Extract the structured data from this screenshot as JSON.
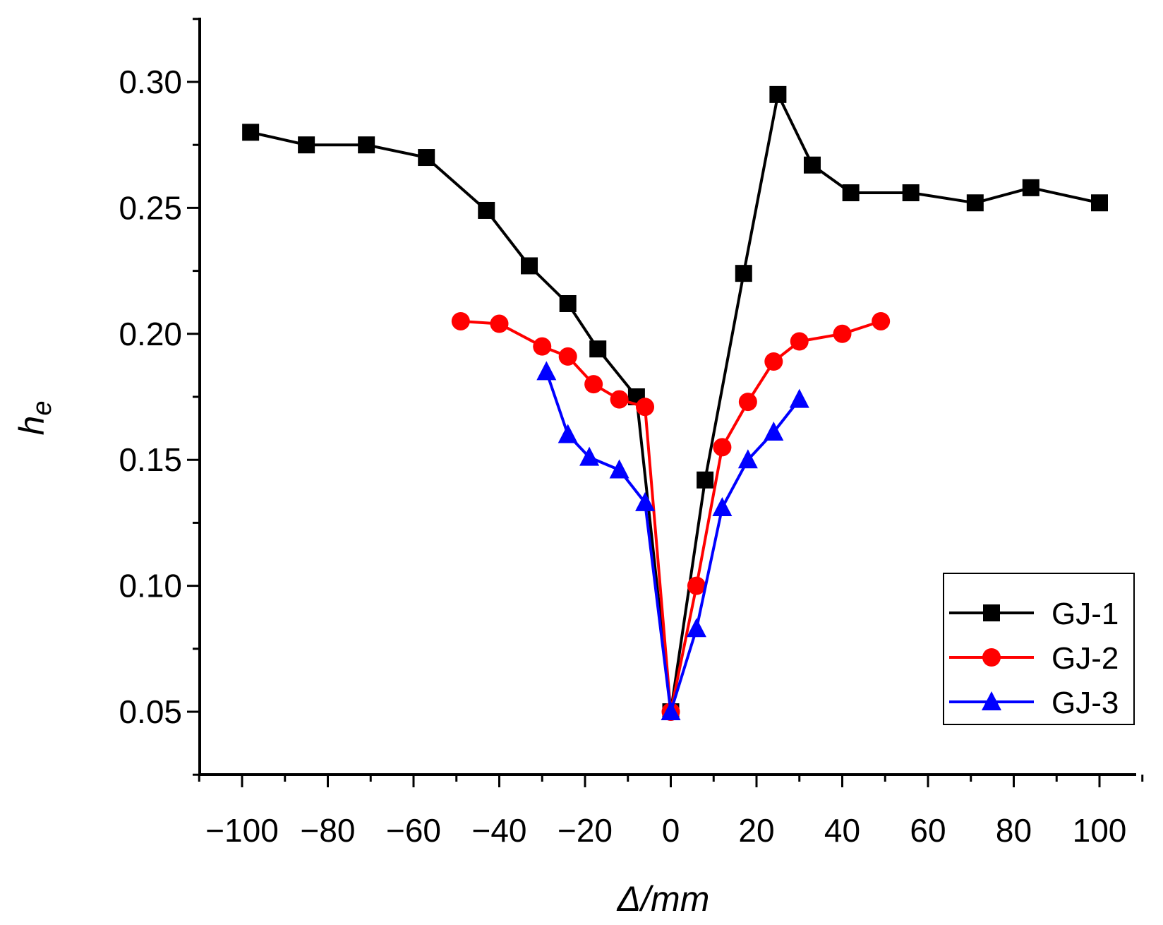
{
  "chart_data": {
    "type": "line",
    "title": "",
    "xlabel": "Δ/mm",
    "ylabel_main": "h",
    "ylabel_sub": "e",
    "xlim": [
      -110,
      110
    ],
    "ylim": [
      0.025,
      0.325
    ],
    "x_ticks": [
      -100,
      -80,
      -60,
      -40,
      -20,
      0,
      20,
      40,
      60,
      80,
      100
    ],
    "x_tick_labels": [
      "−100",
      "−80",
      "−60",
      "−40",
      "−20",
      "0",
      "20",
      "40",
      "60",
      "80",
      "100"
    ],
    "y_ticks": [
      0.05,
      0.1,
      0.15,
      0.2,
      0.25,
      0.3
    ],
    "y_tick_labels": [
      "0.05",
      "0.10",
      "0.15",
      "0.20",
      "0.25",
      "0.30"
    ],
    "legend_position": "bottom-right",
    "series": [
      {
        "name": "GJ-1",
        "color": "#000000",
        "marker": "square",
        "points": [
          [
            -98,
            0.28
          ],
          [
            -85,
            0.275
          ],
          [
            -71,
            0.275
          ],
          [
            -57,
            0.27
          ],
          [
            -43,
            0.249
          ],
          [
            -33,
            0.227
          ],
          [
            -24,
            0.212
          ],
          [
            -17,
            0.194
          ],
          [
            -8,
            0.175
          ],
          [
            0,
            0.05
          ],
          [
            8,
            0.142
          ],
          [
            17,
            0.224
          ],
          [
            25,
            0.295
          ],
          [
            33,
            0.267
          ],
          [
            42,
            0.256
          ],
          [
            56,
            0.256
          ],
          [
            71,
            0.252
          ],
          [
            84,
            0.258
          ],
          [
            100,
            0.252
          ]
        ]
      },
      {
        "name": "GJ-2",
        "color": "#ff0000",
        "marker": "circle",
        "points": [
          [
            -49,
            0.205
          ],
          [
            -40,
            0.204
          ],
          [
            -30,
            0.195
          ],
          [
            -24,
            0.191
          ],
          [
            -18,
            0.18
          ],
          [
            -12,
            0.174
          ],
          [
            -6,
            0.171
          ],
          [
            0,
            0.05
          ],
          [
            6,
            0.1
          ],
          [
            12,
            0.155
          ],
          [
            18,
            0.173
          ],
          [
            24,
            0.189
          ],
          [
            30,
            0.197
          ],
          [
            40,
            0.2
          ],
          [
            49,
            0.205
          ]
        ]
      },
      {
        "name": "GJ-3",
        "color": "#0000ff",
        "marker": "triangle",
        "points": [
          [
            -29,
            0.185
          ],
          [
            -24,
            0.16
          ],
          [
            -19,
            0.151
          ],
          [
            -12,
            0.146
          ],
          [
            -6,
            0.133
          ],
          [
            0,
            0.05
          ],
          [
            6,
            0.083
          ],
          [
            12,
            0.131
          ],
          [
            18,
            0.15
          ],
          [
            24,
            0.161
          ],
          [
            30,
            0.174
          ]
        ]
      }
    ]
  }
}
